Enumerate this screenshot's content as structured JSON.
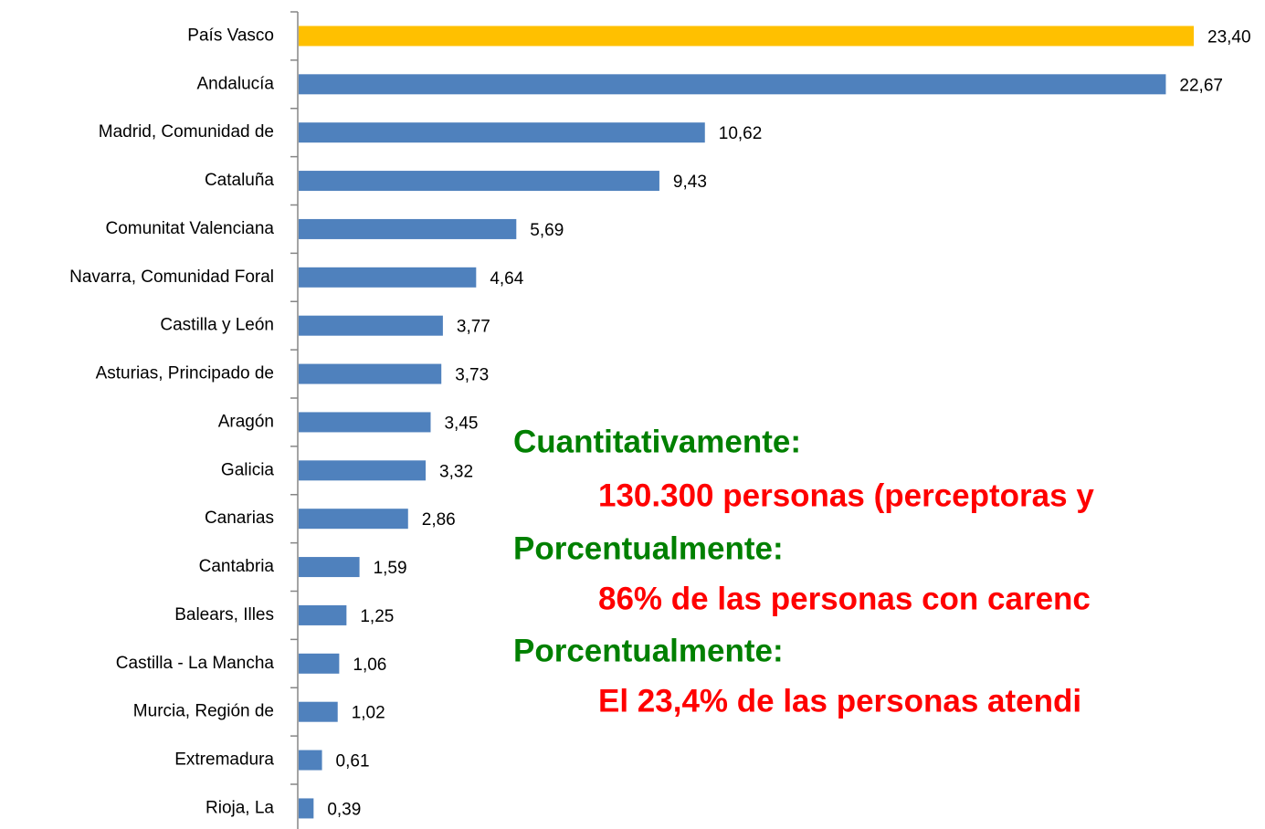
{
  "chart_data": {
    "type": "hbar",
    "categories": [
      "País Vasco",
      "Andalucía",
      "Madrid, Comunidad de",
      "Cataluña",
      "Comunitat Valenciana",
      "Navarra, Comunidad Foral ",
      "Castilla y León",
      "Asturias, Principado de",
      "Aragón",
      "Galicia",
      "Canarias",
      "Cantabria",
      "Balears, Illes",
      "Castilla - La Mancha",
      "Murcia, Región de",
      "Extremadura",
      "Rioja, La"
    ],
    "values": [
      23.4,
      22.67,
      10.62,
      9.43,
      5.69,
      4.64,
      3.77,
      3.73,
      3.45,
      3.32,
      2.86,
      1.59,
      1.25,
      1.06,
      1.02,
      0.61,
      0.39
    ],
    "value_labels": [
      "23,40",
      "22,67",
      "10,62",
      "9,43",
      "5,69",
      "4,64",
      "3,77",
      "3,73",
      "3,45",
      "3,32",
      "2,86",
      "1,59",
      "1,25",
      "1,06",
      "1,02",
      "0,61",
      "0,39"
    ],
    "colors": [
      "#ffc000",
      "#4f81bd",
      "#4f81bd",
      "#4f81bd",
      "#4f81bd",
      "#4f81bd",
      "#4f81bd",
      "#4f81bd",
      "#4f81bd",
      "#4f81bd",
      "#4f81bd",
      "#4f81bd",
      "#4f81bd",
      "#4f81bd",
      "#4f81bd",
      "#4f81bd",
      "#4f81bd"
    ],
    "annotations": [
      {
        "text": "Cuantitativamente:",
        "color": "#008000"
      },
      {
        "text": "130.300 personas (perceptoras y",
        "color": "#ff0000"
      },
      {
        "text": "Porcentualmente:",
        "color": "#008000"
      },
      {
        "text": "86% de las personas con carenc",
        "color": "#ff0000"
      },
      {
        "text": "Porcentualmente:",
        "color": "#008000"
      },
      {
        "text": "El 23,4% de las personas atendi",
        "color": "#ff0000"
      }
    ]
  }
}
